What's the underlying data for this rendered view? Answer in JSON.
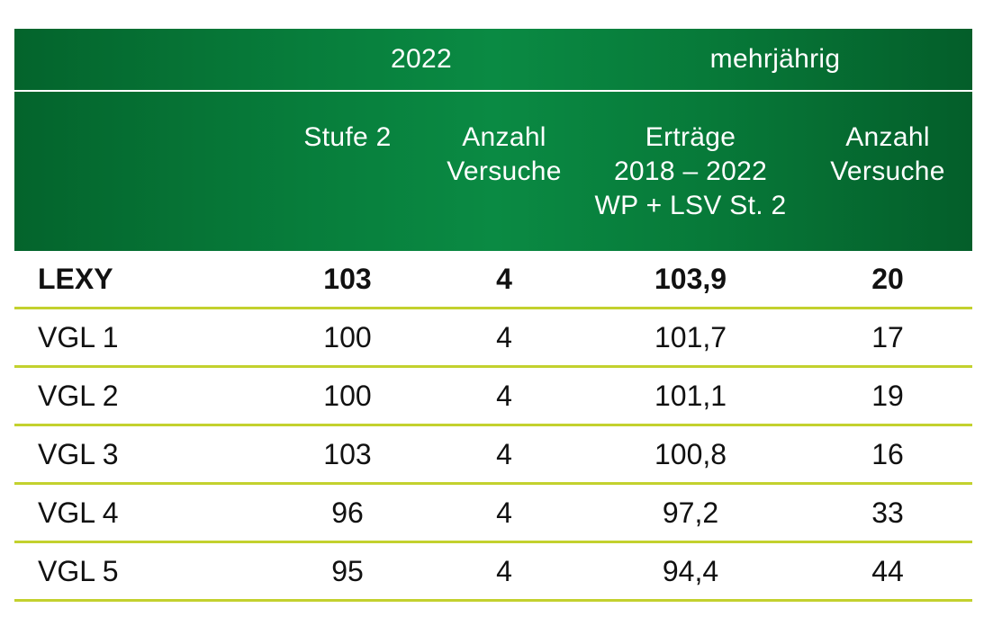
{
  "header": {
    "group_2022": "2022",
    "group_multi": "mehrjährig",
    "columns": [
      [
        "Stufe 2"
      ],
      [
        "Anzahl",
        "Versuche"
      ],
      [
        "Erträge",
        "2018 – 2022",
        "WP + LSV St. 2"
      ],
      [
        "Anzahl",
        "Versuche"
      ]
    ]
  },
  "rows": [
    {
      "name": "LEXY",
      "stufe2": "103",
      "anzahl2022": "4",
      "ertraege": "103,9",
      "anzahl_multi": "20",
      "bold": true
    },
    {
      "name": "VGL 1",
      "stufe2": "100",
      "anzahl2022": "4",
      "ertraege": "101,7",
      "anzahl_multi": "17"
    },
    {
      "name": "VGL 2",
      "stufe2": "100",
      "anzahl2022": "4",
      "ertraege": "101,1",
      "anzahl_multi": "19"
    },
    {
      "name": "VGL 3",
      "stufe2": "103",
      "anzahl2022": "4",
      "ertraege": "100,8",
      "anzahl_multi": "16"
    },
    {
      "name": "VGL 4",
      "stufe2": "96",
      "anzahl2022": "4",
      "ertraege": "97,2",
      "anzahl_multi": "33"
    },
    {
      "name": "VGL 5",
      "stufe2": "95",
      "anzahl2022": "4",
      "ertraege": "94,4",
      "anzahl_multi": "44"
    }
  ],
  "colors": {
    "header_green": "#077d3b",
    "row_rule": "#c3d12e"
  }
}
